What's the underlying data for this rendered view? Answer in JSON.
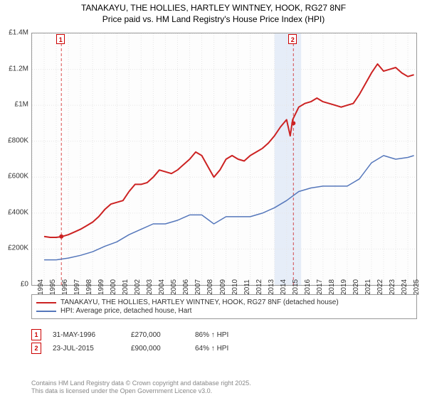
{
  "title_line1": "TANAKAYU, THE HOLLIES, HARTLEY WINTNEY, HOOK, RG27 8NF",
  "title_line2": "Price paid vs. HM Land Registry's House Price Index (HPI)",
  "chart": {
    "type": "line",
    "background_color": "#fdfdfd",
    "grid_color": "#e5e5e5",
    "border_color": "#999999",
    "xlim": [
      1994,
      2025.7
    ],
    "ylim": [
      0,
      1400000
    ],
    "yticks": [
      0,
      200000,
      400000,
      600000,
      800000,
      1000000,
      1200000,
      1400000
    ],
    "ytick_labels": [
      "£0",
      "£200K",
      "£400K",
      "£600K",
      "£800K",
      "£1M",
      "£1.2M",
      "£1.4M"
    ],
    "xticks": [
      1994,
      1995,
      1996,
      1997,
      1998,
      1999,
      2000,
      2001,
      2002,
      2003,
      2004,
      2005,
      2006,
      2007,
      2008,
      2009,
      2010,
      2011,
      2012,
      2013,
      2014,
      2015,
      2016,
      2017,
      2018,
      2019,
      2020,
      2021,
      2022,
      2023,
      2024,
      2025
    ],
    "label_fontsize": 10,
    "shaded_x": [
      2014,
      2016.2
    ],
    "shade_color": "rgba(100,150,220,0.15)",
    "series": [
      {
        "name": "price_paid",
        "color": "#cc2222",
        "line_width": 2,
        "x": [
          1995,
          1995.5,
          1996,
          1996.5,
          1997,
          1997.5,
          1998,
          1998.5,
          1999,
          1999.5,
          2000,
          2000.5,
          2001,
          2001.5,
          2002,
          2002.5,
          2003,
          2003.5,
          2004,
          2004.5,
          2005,
          2005.5,
          2006,
          2006.5,
          2007,
          2007.5,
          2008,
          2008.5,
          2009,
          2009.5,
          2010,
          2010.5,
          2011,
          2011.5,
          2012,
          2012.5,
          2013,
          2013.5,
          2014,
          2014.5,
          2015,
          2015.3,
          2015.5,
          2016,
          2016.5,
          2017,
          2017.5,
          2018,
          2018.5,
          2019,
          2019.5,
          2020,
          2020.5,
          2021,
          2021.5,
          2022,
          2022.5,
          2023,
          2023.5,
          2024,
          2024.5,
          2025,
          2025.5
        ],
        "y": [
          270000,
          265000,
          265000,
          270000,
          280000,
          295000,
          310000,
          330000,
          350000,
          380000,
          420000,
          450000,
          460000,
          470000,
          520000,
          560000,
          560000,
          570000,
          600000,
          640000,
          630000,
          620000,
          640000,
          670000,
          700000,
          740000,
          720000,
          660000,
          600000,
          640000,
          700000,
          720000,
          700000,
          690000,
          720000,
          740000,
          760000,
          790000,
          830000,
          880000,
          920000,
          830000,
          920000,
          990000,
          1010000,
          1020000,
          1040000,
          1020000,
          1010000,
          1000000,
          990000,
          1000000,
          1010000,
          1060000,
          1120000,
          1180000,
          1230000,
          1190000,
          1200000,
          1210000,
          1180000,
          1160000,
          1170000
        ]
      },
      {
        "name": "hpi",
        "color": "#5577bb",
        "line_width": 1.5,
        "x": [
          1995,
          1996,
          1997,
          1998,
          1999,
          2000,
          2001,
          2002,
          2003,
          2004,
          2005,
          2006,
          2007,
          2008,
          2009,
          2010,
          2011,
          2012,
          2013,
          2014,
          2015,
          2016,
          2017,
          2018,
          2019,
          2020,
          2021,
          2022,
          2023,
          2024,
          2025,
          2025.5
        ],
        "y": [
          140000,
          140000,
          150000,
          165000,
          185000,
          215000,
          240000,
          280000,
          310000,
          340000,
          340000,
          360000,
          390000,
          390000,
          340000,
          380000,
          380000,
          380000,
          400000,
          430000,
          470000,
          520000,
          540000,
          550000,
          550000,
          550000,
          590000,
          680000,
          720000,
          700000,
          710000,
          720000
        ]
      }
    ],
    "markers": [
      {
        "id": "1",
        "x": 1996.42,
        "y_top": 0
      },
      {
        "id": "2",
        "x": 2015.56,
        "y_top": 0
      }
    ],
    "sale_points": [
      {
        "x": 1996.42,
        "y": 270000,
        "color": "#cc2222"
      },
      {
        "x": 2015.56,
        "y": 900000,
        "color": "#cc2222"
      }
    ]
  },
  "legend": {
    "items": [
      {
        "color": "#cc2222",
        "label": "TANAKAYU, THE HOLLIES, HARTLEY WINTNEY, HOOK, RG27 8NF (detached house)"
      },
      {
        "color": "#5577bb",
        "label": "HPI: Average price, detached house, Hart"
      }
    ]
  },
  "sales": [
    {
      "id": "1",
      "date": "31-MAY-1996",
      "price": "£270,000",
      "pct": "86% ↑ HPI"
    },
    {
      "id": "2",
      "date": "23-JUL-2015",
      "price": "£900,000",
      "pct": "64% ↑ HPI"
    }
  ],
  "footer_line1": "Contains HM Land Registry data © Crown copyright and database right 2025.",
  "footer_line2": "This data is licensed under the Open Government Licence v3.0."
}
